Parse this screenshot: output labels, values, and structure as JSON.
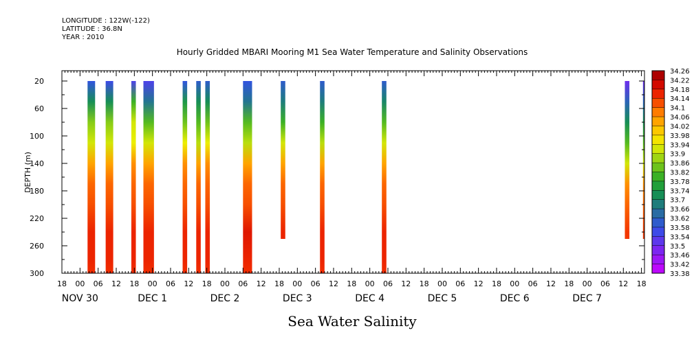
{
  "header": {
    "longitude": "LONGITUDE : 122W(-122)",
    "latitude": "LATITUDE : 36.8N",
    "year": "YEAR : 2010"
  },
  "chart_data": {
    "type": "heatmap",
    "title": "Hourly Gridded MBARI Mooring M1 Sea Water Temperature and Salinity Observations",
    "xlabel": "",
    "ylabel": "DEPTH (m)",
    "caption": "Sea Water Salinity",
    "x_start": "2010-11-29T18:00",
    "x_end": "2010-12-07T19:00",
    "ylim": [
      300,
      5
    ],
    "y_ticks": [
      20,
      60,
      100,
      140,
      180,
      220,
      260,
      300
    ],
    "x_hour_labels": [
      "18",
      "00",
      "06",
      "12",
      "18",
      "00",
      "06",
      "12",
      "18",
      "00",
      "06",
      "12",
      "18",
      "00",
      "06",
      "12",
      "18",
      "00",
      "06",
      "12",
      "18",
      "00",
      "06",
      "12",
      "18",
      "00",
      "06",
      "12",
      "18",
      "00",
      "06",
      "12",
      "18"
    ],
    "x_day_labels": [
      {
        "label": "NOV 30",
        "time": "2010-11-30T00:00"
      },
      {
        "label": "DEC  1",
        "time": "2010-12-01T00:00"
      },
      {
        "label": "DEC  2",
        "time": "2010-12-02T00:00"
      },
      {
        "label": "DEC  3",
        "time": "2010-12-03T00:00"
      },
      {
        "label": "DEC  4",
        "time": "2010-12-04T00:00"
      },
      {
        "label": "DEC  5",
        "time": "2010-12-05T00:00"
      },
      {
        "label": "DEC  6",
        "time": "2010-12-06T00:00"
      },
      {
        "label": "DEC  7",
        "time": "2010-12-07T00:00"
      }
    ],
    "colorbar": {
      "min": 33.38,
      "max": 34.26,
      "labels": [
        "34.26",
        "34.22",
        "34.18",
        "34.14",
        "34.1",
        "34.06",
        "34.02",
        "33.98",
        "33.94",
        "33.9",
        "33.86",
        "33.82",
        "33.78",
        "33.74",
        "33.7",
        "33.66",
        "33.62",
        "33.58",
        "33.54",
        "33.5",
        "33.46",
        "33.42",
        "33.38"
      ]
    },
    "columns": [
      {
        "start": "2010-11-30T02:30",
        "end": "2010-11-30T05:00",
        "depth_max": 300,
        "profile": [
          [
            20,
            33.58
          ],
          [
            50,
            33.72
          ],
          [
            80,
            33.86
          ],
          [
            110,
            33.92
          ],
          [
            140,
            34.04
          ],
          [
            170,
            34.1
          ],
          [
            200,
            34.12
          ],
          [
            240,
            34.16
          ],
          [
            280,
            34.16
          ],
          [
            300,
            34.15
          ]
        ]
      },
      {
        "start": "2010-11-30T08:30",
        "end": "2010-11-30T11:00",
        "depth_max": 300,
        "profile": [
          [
            20,
            33.56
          ],
          [
            50,
            33.72
          ],
          [
            80,
            33.86
          ],
          [
            110,
            33.92
          ],
          [
            140,
            34.04
          ],
          [
            170,
            34.1
          ],
          [
            200,
            34.12
          ],
          [
            240,
            34.16
          ],
          [
            280,
            34.16
          ],
          [
            300,
            34.15
          ]
        ]
      },
      {
        "start": "2010-11-30T17:00",
        "end": "2010-11-30T18:30",
        "depth_max": 300,
        "profile": [
          [
            20,
            33.54
          ],
          [
            50,
            33.8
          ],
          [
            80,
            33.92
          ],
          [
            110,
            33.94
          ],
          [
            140,
            34.06
          ],
          [
            170,
            34.1
          ],
          [
            200,
            34.12
          ],
          [
            240,
            34.16
          ],
          [
            280,
            34.16
          ],
          [
            300,
            34.15
          ]
        ]
      },
      {
        "start": "2010-11-30T21:00",
        "end": "2010-12-01T00:30",
        "depth_max": 300,
        "profile": [
          [
            20,
            33.54
          ],
          [
            50,
            33.66
          ],
          [
            80,
            33.82
          ],
          [
            110,
            33.92
          ],
          [
            140,
            34.04
          ],
          [
            170,
            34.1
          ],
          [
            200,
            34.12
          ],
          [
            240,
            34.16
          ],
          [
            280,
            34.16
          ],
          [
            300,
            34.15
          ]
        ]
      },
      {
        "start": "2010-12-01T10:00",
        "end": "2010-12-01T11:30",
        "depth_max": 300,
        "profile": [
          [
            20,
            33.58
          ],
          [
            50,
            33.74
          ],
          [
            80,
            33.84
          ],
          [
            110,
            33.94
          ],
          [
            140,
            34.06
          ],
          [
            170,
            34.1
          ],
          [
            200,
            34.12
          ],
          [
            240,
            34.16
          ],
          [
            280,
            34.16
          ],
          [
            300,
            34.15
          ]
        ]
      },
      {
        "start": "2010-12-01T14:30",
        "end": "2010-12-01T16:00",
        "depth_max": 300,
        "profile": [
          [
            20,
            33.6
          ],
          [
            50,
            33.72
          ],
          [
            80,
            33.82
          ],
          [
            110,
            33.9
          ],
          [
            140,
            34.04
          ],
          [
            170,
            34.1
          ],
          [
            200,
            34.12
          ],
          [
            240,
            34.16
          ],
          [
            280,
            34.16
          ],
          [
            300,
            34.15
          ]
        ]
      },
      {
        "start": "2010-12-01T17:30",
        "end": "2010-12-01T19:00",
        "depth_max": 300,
        "profile": [
          [
            20,
            33.6
          ],
          [
            50,
            33.72
          ],
          [
            80,
            33.84
          ],
          [
            110,
            33.94
          ],
          [
            140,
            34.06
          ],
          [
            170,
            34.1
          ],
          [
            200,
            34.12
          ],
          [
            240,
            34.16
          ],
          [
            280,
            34.16
          ],
          [
            300,
            34.15
          ]
        ]
      },
      {
        "start": "2010-12-02T06:00",
        "end": "2010-12-02T09:00",
        "depth_max": 300,
        "profile": [
          [
            20,
            33.58
          ],
          [
            50,
            33.66
          ],
          [
            80,
            33.82
          ],
          [
            110,
            33.9
          ],
          [
            140,
            34.04
          ],
          [
            170,
            34.1
          ],
          [
            200,
            34.12
          ],
          [
            240,
            34.18
          ],
          [
            280,
            34.16
          ],
          [
            300,
            34.15
          ]
        ]
      },
      {
        "start": "2010-12-02T18:30",
        "end": "2010-12-02T20:00",
        "depth_max": 250,
        "profile": [
          [
            20,
            33.6
          ],
          [
            50,
            33.68
          ],
          [
            80,
            33.8
          ],
          [
            110,
            33.92
          ],
          [
            140,
            34.04
          ],
          [
            170,
            34.1
          ],
          [
            200,
            34.12
          ],
          [
            240,
            34.16
          ],
          [
            250,
            34.16
          ]
        ]
      },
      {
        "start": "2010-12-03T07:30",
        "end": "2010-12-03T09:00",
        "depth_max": 300,
        "profile": [
          [
            20,
            33.6
          ],
          [
            50,
            33.68
          ],
          [
            80,
            33.8
          ],
          [
            110,
            33.9
          ],
          [
            140,
            34.04
          ],
          [
            170,
            34.1
          ],
          [
            200,
            34.12
          ],
          [
            240,
            34.16
          ],
          [
            280,
            34.16
          ],
          [
            300,
            34.15
          ]
        ]
      },
      {
        "start": "2010-12-04T04:00",
        "end": "2010-12-04T05:30",
        "depth_max": 300,
        "profile": [
          [
            20,
            33.6
          ],
          [
            50,
            33.7
          ],
          [
            80,
            33.82
          ],
          [
            110,
            33.92
          ],
          [
            140,
            34.04
          ],
          [
            170,
            34.1
          ],
          [
            200,
            34.12
          ],
          [
            240,
            34.16
          ],
          [
            280,
            34.16
          ],
          [
            300,
            34.15
          ]
        ]
      },
      {
        "start": "2010-12-07T12:30",
        "end": "2010-12-07T14:00",
        "depth_max": 250,
        "profile": [
          [
            20,
            33.5
          ],
          [
            50,
            33.62
          ],
          [
            80,
            33.72
          ],
          [
            110,
            33.82
          ],
          [
            140,
            33.92
          ],
          [
            170,
            34.06
          ],
          [
            200,
            34.1
          ],
          [
            240,
            34.14
          ],
          [
            250,
            34.14
          ]
        ]
      },
      {
        "start": "2010-12-07T18:30",
        "end": "2010-12-07T19:00",
        "depth_max": 250,
        "profile": [
          [
            20,
            33.5
          ],
          [
            50,
            33.62
          ],
          [
            80,
            33.72
          ],
          [
            110,
            33.82
          ],
          [
            140,
            33.92
          ],
          [
            170,
            34.06
          ],
          [
            200,
            34.1
          ],
          [
            240,
            34.14
          ],
          [
            250,
            34.14
          ]
        ]
      }
    ]
  }
}
